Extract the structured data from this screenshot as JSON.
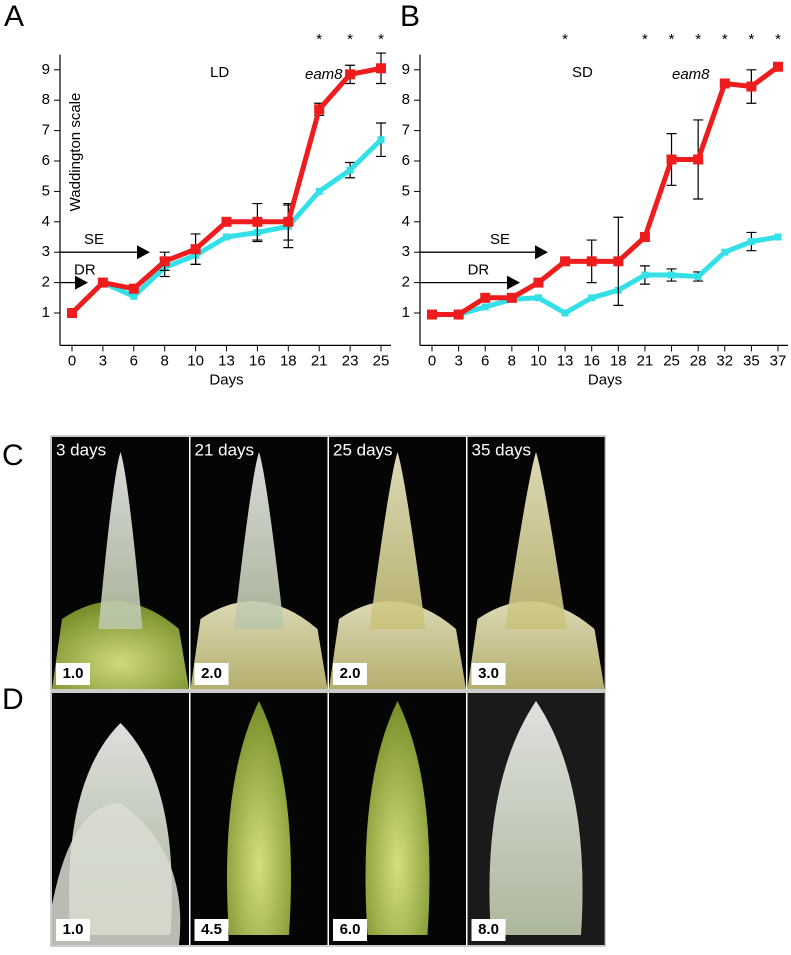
{
  "chart_data": [
    {
      "type": "line",
      "panel": "A",
      "condition": "LD",
      "x_label": "Days",
      "y_label": "Waddington scale",
      "categories": [
        "0",
        "3",
        "6",
        "8",
        "10",
        "13",
        "16",
        "18",
        "21",
        "23",
        "25"
      ],
      "ylim": [
        0,
        9.5
      ],
      "yticks": [
        1,
        2,
        3,
        4,
        5,
        6,
        7,
        8,
        9
      ],
      "series": [
        {
          "name": "eam8",
          "color": "#ee1c1c",
          "values": [
            1.0,
            2.0,
            1.8,
            2.7,
            3.1,
            4.0,
            4.0,
            4.0,
            7.7,
            8.85,
            9.05
          ],
          "errors": [
            null,
            null,
            null,
            0.3,
            0.5,
            null,
            0.6,
            0.6,
            0.2,
            0.3,
            0.5
          ]
        },
        {
          "color": "#33e0e8",
          "values": [
            1.0,
            2.0,
            1.55,
            2.5,
            2.9,
            3.5,
            3.65,
            3.85,
            5.0,
            5.7,
            6.7
          ],
          "errors": [
            null,
            null,
            null,
            0.3,
            0.3,
            null,
            0.3,
            0.7,
            null,
            0.25,
            0.55
          ]
        }
      ],
      "annotations": [
        {
          "text": "*",
          "at": "21"
        },
        {
          "text": "*",
          "at": "23"
        },
        {
          "text": "*",
          "at": "25"
        }
      ],
      "arrows": [
        {
          "label": "DR",
          "level": 2
        },
        {
          "label": "SE",
          "level": 3
        }
      ]
    },
    {
      "type": "line",
      "panel": "B",
      "condition": "SD",
      "x_label": "Days",
      "categories": [
        "0",
        "3",
        "6",
        "8",
        "10",
        "13",
        "16",
        "18",
        "21",
        "25",
        "28",
        "32",
        "35",
        "37"
      ],
      "ylim": [
        0,
        9.5
      ],
      "yticks": [
        1,
        2,
        3,
        4,
        5,
        6,
        7,
        8,
        9
      ],
      "series": [
        {
          "name": "eam8",
          "color": "#ee1c1c",
          "values": [
            0.95,
            0.95,
            1.5,
            1.5,
            2.0,
            2.7,
            2.7,
            2.7,
            3.5,
            6.05,
            6.05,
            8.55,
            8.45,
            9.1
          ],
          "errors": [
            null,
            null,
            null,
            null,
            null,
            null,
            0.7,
            1.45,
            null,
            0.85,
            1.3,
            null,
            0.55,
            null
          ]
        },
        {
          "color": "#33e0e8",
          "values": [
            0.95,
            0.95,
            1.2,
            1.45,
            1.5,
            1.0,
            1.5,
            1.75,
            2.25,
            2.25,
            2.2,
            3.0,
            3.35,
            3.5
          ],
          "errors": [
            null,
            null,
            null,
            null,
            null,
            null,
            null,
            null,
            0.3,
            0.2,
            0.15,
            null,
            0.3,
            null
          ]
        }
      ],
      "annotations": [
        {
          "text": "*",
          "at": "13"
        },
        {
          "text": "*",
          "at": "21"
        },
        {
          "text": "*",
          "at": "25"
        },
        {
          "text": "*",
          "at": "28"
        },
        {
          "text": "*",
          "at": "32"
        },
        {
          "text": "*",
          "at": "35"
        },
        {
          "text": "*",
          "at": "37"
        }
      ],
      "arrows": [
        {
          "label": "SE",
          "level": 3
        },
        {
          "label": "DR",
          "level": 2
        }
      ]
    }
  ],
  "photo_panels": [
    {
      "label": "C",
      "images": [
        {
          "caption": "3 days",
          "score": "1.0"
        },
        {
          "caption": "21 days",
          "score": "2.0"
        },
        {
          "caption": "25 days",
          "score": "2.0"
        },
        {
          "caption": "35 days",
          "score": "3.0"
        }
      ]
    },
    {
      "label": "D",
      "images": [
        {
          "score": "1.0"
        },
        {
          "score": "4.5"
        },
        {
          "score": "6.0"
        },
        {
          "score": "8.0"
        }
      ]
    }
  ]
}
